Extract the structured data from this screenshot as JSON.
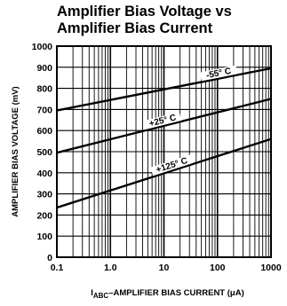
{
  "chart_data": {
    "type": "line",
    "title_line1": "Amplifier Bias Voltage vs",
    "title_line2": "Amplifier Bias Current",
    "ylabel": "AMPLIFIER BIAS VOLTAGE (mV)",
    "xlabel_prefix": "I",
    "xlabel_sub": "ABC",
    "xlabel_rest": "–AMPLIFIER BIAS CURRENT (μA)",
    "x_scale": "log",
    "xlim": [
      0.1,
      1000
    ],
    "ylim": [
      0,
      1000
    ],
    "x_tick_values": [
      0.1,
      1,
      10,
      100,
      1000
    ],
    "x_tick_labels": [
      "0.1",
      "1.0",
      "10",
      "100",
      "1000"
    ],
    "y_tick_values": [
      0,
      100,
      200,
      300,
      400,
      500,
      600,
      700,
      800,
      900,
      1000
    ],
    "y_tick_labels": [
      "0",
      "100",
      "200",
      "300",
      "400",
      "500",
      "600",
      "700",
      "800",
      "900",
      "1000"
    ],
    "grid": true,
    "series": [
      {
        "name": "-55° C",
        "x": [
          0.1,
          1000
        ],
        "y": [
          695,
          895
        ],
        "label_at": 110
      },
      {
        "name": "+25° C",
        "x": [
          0.1,
          1000
        ],
        "y": [
          495,
          750
        ],
        "label_at": 10
      },
      {
        "name": "+125° C",
        "x": [
          0.1,
          1000
        ],
        "y": [
          235,
          560
        ],
        "label_at": 15
      }
    ]
  }
}
